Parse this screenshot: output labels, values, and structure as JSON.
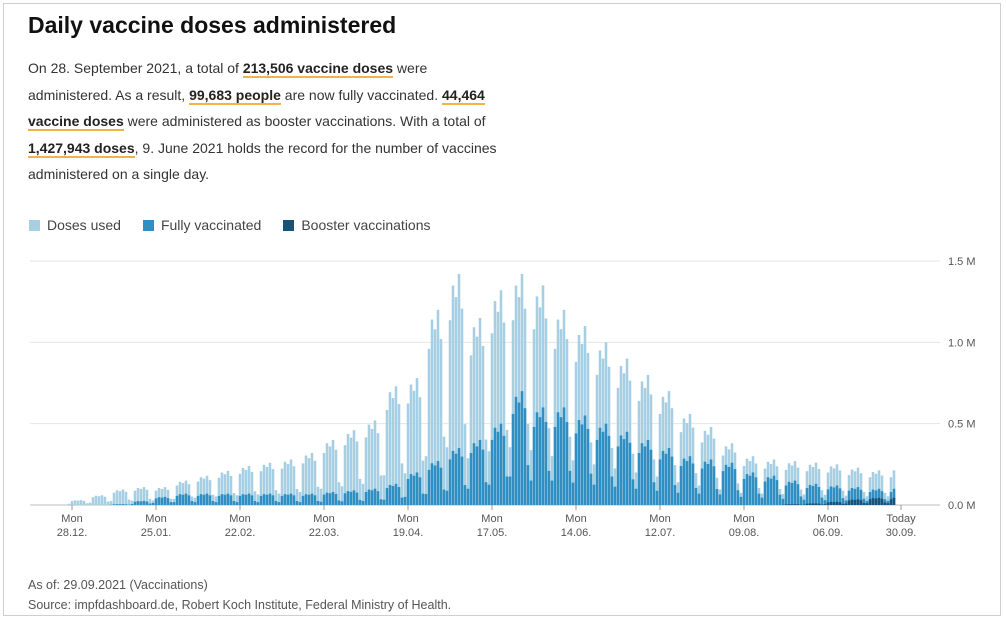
{
  "title": "Daily vaccine doses administered",
  "intro": {
    "p1": "On 28. September 2021, a total of ",
    "h1": "213,506 vaccine doses",
    "p2": " were administered. As a result, ",
    "h2": "99,683 people",
    "p3": " are now fully vaccinated. ",
    "h3": "44,464 vaccine doses",
    "p4": " were administered as booster vaccinations. With a total of ",
    "h4": "1,427,943 doses",
    "p5": ", 9. June 2021 holds the record for the number of vaccines administered on a single day."
  },
  "colors": {
    "doses_used": "#a6cfe3",
    "fully_vaccinated": "#2f8ec2",
    "booster": "#1a5277",
    "highlight": "#f2b24a",
    "grid": "#e6e6e6"
  },
  "chart_data": {
    "type": "bar",
    "stacked": "overlay",
    "x_start": "2020-12-27",
    "x_end": "2021-09-28",
    "x_ticks": [
      {
        "date": "2020-12-28",
        "top": "Mon",
        "bottom": "28.12."
      },
      {
        "date": "2021-01-25",
        "top": "Mon",
        "bottom": "25.01."
      },
      {
        "date": "2021-02-22",
        "top": "Mon",
        "bottom": "22.02."
      },
      {
        "date": "2021-03-22",
        "top": "Mon",
        "bottom": "22.03."
      },
      {
        "date": "2021-04-19",
        "top": "Mon",
        "bottom": "19.04."
      },
      {
        "date": "2021-05-17",
        "top": "Mon",
        "bottom": "17.05."
      },
      {
        "date": "2021-06-14",
        "top": "Mon",
        "bottom": "14.06."
      },
      {
        "date": "2021-07-12",
        "top": "Mon",
        "bottom": "12.07."
      },
      {
        "date": "2021-08-09",
        "top": "Mon",
        "bottom": "09.08."
      },
      {
        "date": "2021-09-06",
        "top": "Mon",
        "bottom": "06.09."
      },
      {
        "date": "2021-09-30",
        "top": "Today",
        "bottom": "30.09."
      }
    ],
    "y_ticks": [
      {
        "value": 0,
        "label": "0.0 M"
      },
      {
        "value": 500000,
        "label": "0.5 M"
      },
      {
        "value": 1000000,
        "label": "1.0 M"
      },
      {
        "value": 1500000,
        "label": "1.5 M"
      }
    ],
    "ylim": [
      0,
      1500000
    ],
    "grid": true,
    "legend_position": "top-left",
    "series": [
      {
        "name": "Doses used",
        "color": "#a6cfe3",
        "weekly_peak": [
          30000,
          60000,
          95000,
          110000,
          110000,
          150000,
          180000,
          210000,
          240000,
          260000,
          280000,
          320000,
          400000,
          460000,
          520000,
          730000,
          780000,
          1200000,
          1420000,
          1150000,
          1320000,
          1420000,
          1350000,
          1200000,
          1100000,
          1000000,
          900000,
          800000,
          700000,
          560000,
          480000,
          380000,
          300000,
          280000,
          270000,
          260000,
          250000,
          230000,
          213506
        ]
      },
      {
        "name": "Fully vaccinated",
        "color": "#2f8ec2",
        "weekly_peak": [
          0,
          0,
          5000,
          25000,
          50000,
          70000,
          70000,
          70000,
          70000,
          70000,
          70000,
          70000,
          80000,
          90000,
          100000,
          130000,
          200000,
          270000,
          350000,
          400000,
          500000,
          700000,
          600000,
          600000,
          550000,
          500000,
          450000,
          400000,
          350000,
          300000,
          280000,
          260000,
          200000,
          180000,
          150000,
          130000,
          120000,
          110000,
          99683
        ]
      },
      {
        "name": "Booster vaccinations",
        "color": "#1a5277",
        "weekly_peak": [
          0,
          0,
          0,
          0,
          0,
          0,
          0,
          0,
          0,
          0,
          0,
          0,
          0,
          0,
          0,
          0,
          0,
          0,
          0,
          0,
          0,
          0,
          0,
          0,
          0,
          0,
          0,
          0,
          0,
          0,
          0,
          0,
          0,
          0,
          5000,
          10000,
          20000,
          35000,
          44464
        ]
      }
    ],
    "weekday_factors": [
      0.8,
      0.95,
      0.9,
      1.0,
      0.85,
      0.35,
      0.25
    ]
  },
  "footer": {
    "as_of": "As of: 29.09.2021 (Vaccinations)",
    "source": "Source: impfdashboard.de, Robert Koch Institute, Federal Ministry of Health."
  }
}
